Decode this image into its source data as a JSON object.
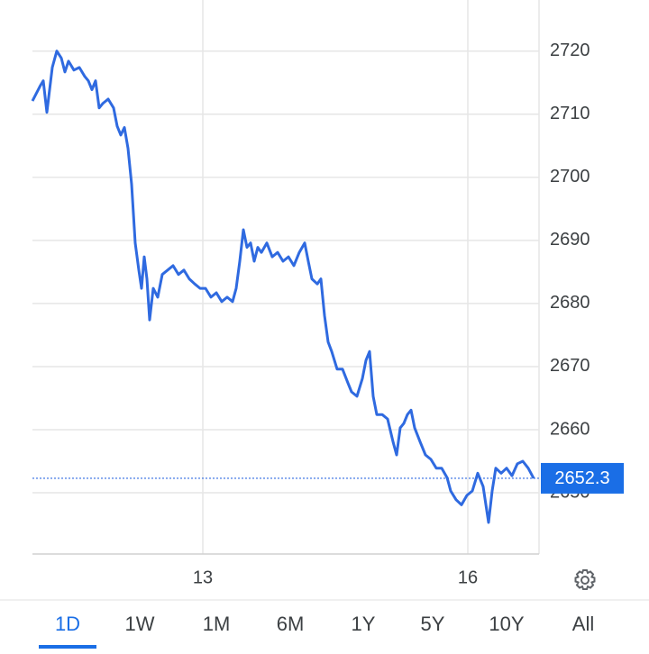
{
  "chart_data": {
    "type": "line",
    "x": [
      0,
      9,
      12,
      16,
      22,
      27,
      32,
      36,
      40,
      46,
      52,
      58,
      62,
      66,
      70,
      74,
      78,
      84,
      90,
      94,
      98,
      102,
      106,
      110,
      114,
      118,
      121,
      124,
      127,
      130,
      134,
      139,
      144,
      150,
      156,
      162,
      168,
      174,
      180,
      186,
      192,
      198,
      204,
      210,
      216,
      222,
      226,
      230,
      234,
      238,
      242,
      246,
      250,
      254,
      260,
      266,
      272,
      278,
      284,
      290,
      296,
      302,
      306,
      310,
      316,
      320,
      324,
      328,
      332,
      338,
      344,
      350,
      354,
      360,
      366,
      370,
      374,
      378,
      382,
      388,
      394,
      400,
      404,
      408,
      412,
      416,
      420,
      424,
      430,
      436,
      442,
      448,
      454,
      460,
      464,
      470,
      476,
      482,
      488,
      494,
      500,
      506,
      510,
      514,
      520,
      526,
      532,
      538,
      544,
      550,
      556
    ],
    "series": [
      {
        "color": "#2f6ae0",
        "values": [
          2712.1,
          2714.6,
          2715.3,
          2710.3,
          2717.4,
          2720,
          2718.9,
          2716.7,
          2718.4,
          2717,
          2717.4,
          2716,
          2715.3,
          2713.9,
          2715.3,
          2711,
          2711.7,
          2712.4,
          2711,
          2708.1,
          2706.7,
          2707.9,
          2704.6,
          2698.9,
          2689.6,
          2685.3,
          2682.4,
          2687.4,
          2683.9,
          2677.4,
          2682.4,
          2681,
          2684.6,
          2685.3,
          2686,
          2684.6,
          2685.3,
          2683.9,
          2683.1,
          2682.4,
          2682.4,
          2681,
          2681.7,
          2680.3,
          2681,
          2680.3,
          2682.4,
          2686.7,
          2691.7,
          2688.9,
          2689.6,
          2686.7,
          2688.9,
          2688.1,
          2689.6,
          2687.4,
          2688.1,
          2686.7,
          2687.4,
          2686,
          2688.1,
          2689.6,
          2686.7,
          2683.9,
          2683.1,
          2683.9,
          2678.1,
          2673.9,
          2672.4,
          2669.6,
          2669.6,
          2667.4,
          2666,
          2665.3,
          2668.1,
          2671,
          2672.4,
          2665.3,
          2662.4,
          2662.4,
          2661.7,
          2658.1,
          2656,
          2660.3,
          2661,
          2662.4,
          2663.1,
          2660.3,
          2658.1,
          2656,
          2655.3,
          2653.9,
          2653.9,
          2652.4,
          2650.3,
          2648.9,
          2648.1,
          2649.6,
          2650.3,
          2653.1,
          2651,
          2645.3,
          2650.3,
          2653.9,
          2653.1,
          2653.9,
          2652.7,
          2654.6,
          2655,
          2653.9,
          2652.3
        ]
      }
    ],
    "current_value": 2652.3,
    "xlim": [
      0,
      562
    ],
    "xticks": [
      {
        "value": 189,
        "label": "13"
      },
      {
        "value": 483,
        "label": "16"
      }
    ],
    "ylim": [
      2640.3,
      2728.1
    ],
    "yticks": [
      2650,
      2660,
      2670,
      2680,
      2690,
      2700,
      2710,
      2720
    ],
    "grid": true
  },
  "ranges": [
    "1D",
    "1W",
    "1M",
    "6M",
    "1Y",
    "5Y",
    "10Y",
    "All"
  ],
  "selected_range": 0
}
